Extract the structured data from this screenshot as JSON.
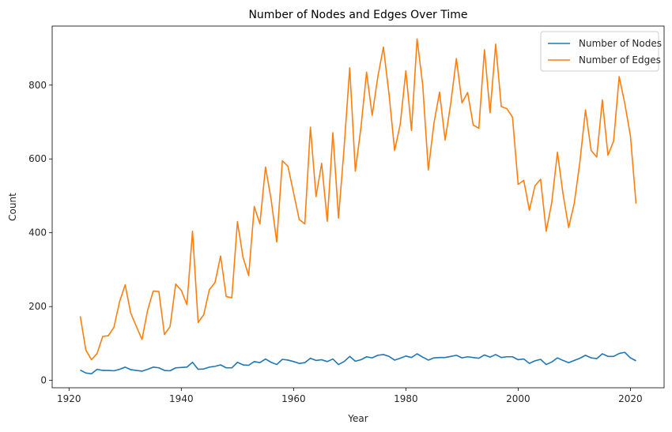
{
  "chart_data": {
    "type": "line",
    "title": "Number of Nodes and Edges Over Time",
    "xlabel": "Year",
    "ylabel": "Count",
    "xlim": [
      1917,
      2026
    ],
    "ylim": [
      -20,
      960
    ],
    "xticks": [
      1920,
      1940,
      1960,
      1980,
      2000,
      2020
    ],
    "yticks": [
      0,
      200,
      400,
      600,
      800
    ],
    "grid": false,
    "legend_position": "top-right",
    "x": [
      1922,
      1923,
      1924,
      1925,
      1926,
      1927,
      1928,
      1929,
      1930,
      1931,
      1932,
      1933,
      1934,
      1935,
      1936,
      1937,
      1938,
      1939,
      1940,
      1941,
      1942,
      1943,
      1944,
      1945,
      1946,
      1947,
      1948,
      1949,
      1950,
      1951,
      1952,
      1953,
      1954,
      1955,
      1956,
      1957,
      1958,
      1959,
      1960,
      1961,
      1962,
      1963,
      1964,
      1965,
      1966,
      1967,
      1968,
      1969,
      1970,
      1971,
      1972,
      1973,
      1974,
      1975,
      1976,
      1977,
      1978,
      1979,
      1980,
      1981,
      1982,
      1983,
      1984,
      1985,
      1986,
      1987,
      1988,
      1989,
      1990,
      1991,
      1992,
      1993,
      1994,
      1995,
      1996,
      1997,
      1998,
      1999,
      2000,
      2001,
      2002,
      2003,
      2004,
      2005,
      2006,
      2007,
      2008,
      2009,
      2010,
      2011,
      2012,
      2013,
      2014,
      2015,
      2016,
      2017,
      2018,
      2019,
      2020,
      2021
    ],
    "series": [
      {
        "name": "Number of Nodes",
        "color": "#1f77b4",
        "values": [
          28,
          20,
          18,
          30,
          27,
          27,
          26,
          30,
          36,
          29,
          27,
          25,
          30,
          36,
          34,
          27,
          26,
          34,
          35,
          36,
          49,
          30,
          31,
          36,
          38,
          42,
          34,
          34,
          49,
          42,
          41,
          51,
          48,
          58,
          49,
          43,
          57,
          55,
          51,
          46,
          48,
          60,
          54,
          56,
          51,
          58,
          43,
          51,
          65,
          52,
          56,
          64,
          61,
          68,
          70,
          65,
          55,
          60,
          66,
          62,
          72,
          63,
          55,
          61,
          62,
          62,
          65,
          68,
          61,
          64,
          62,
          60,
          69,
          63,
          70,
          62,
          64,
          64,
          56,
          58,
          46,
          53,
          57,
          43,
          50,
          61,
          54,
          48,
          54,
          60,
          68,
          61,
          59,
          72,
          65,
          65,
          73,
          76,
          61,
          53
        ]
      },
      {
        "name": "Number of Edges",
        "color": "#ff7f0e",
        "values": [
          174,
          82,
          56,
          73,
          119,
          121,
          144,
          213,
          259,
          182,
          146,
          111,
          190,
          242,
          241,
          124,
          146,
          261,
          244,
          205,
          404,
          157,
          178,
          246,
          265,
          337,
          227,
          224,
          430,
          333,
          284,
          471,
          424,
          578,
          490,
          375,
          595,
          580,
          508,
          436,
          424,
          686,
          498,
          588,
          431,
          671,
          440,
          630,
          847,
          567,
          685,
          835,
          718,
          822,
          903,
          776,
          623,
          694,
          839,
          677,
          925,
          801,
          570,
          696,
          781,
          651,
          751,
          872,
          752,
          780,
          692,
          683,
          896,
          725,
          911,
          742,
          736,
          713,
          531,
          542,
          461,
          527,
          545,
          404,
          483,
          618,
          505,
          414,
          480,
          592,
          733,
          623,
          605,
          760,
          610,
          648,
          823,
          750,
          663,
          479
        ]
      }
    ]
  }
}
